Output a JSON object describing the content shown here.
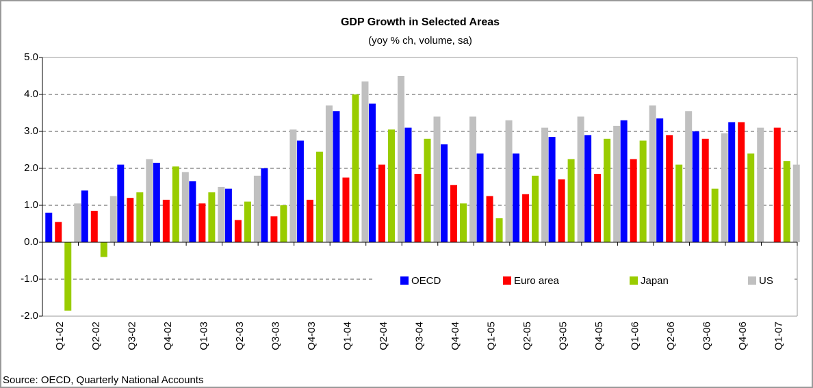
{
  "chart_data": {
    "type": "bar",
    "title": "GDP Growth in Selected Areas",
    "subtitle": "(yoy % ch, volume, sa)",
    "source": "Source: OECD, Quarterly National Accounts",
    "categories": [
      "Q1-02",
      "Q2-02",
      "Q3-02",
      "Q4-02",
      "Q1-03",
      "Q2-03",
      "Q3-03",
      "Q4-03",
      "Q1-04",
      "Q2-04",
      "Q3-04",
      "Q4-04",
      "Q1-05",
      "Q2-05",
      "Q3-05",
      "Q4-05",
      "Q1-06",
      "Q2-06",
      "Q3-06",
      "Q4-06",
      "Q1-07"
    ],
    "series": [
      {
        "name": "OECD",
        "color": "#0000ff",
        "values": [
          0.8,
          1.4,
          2.1,
          2.15,
          1.65,
          1.45,
          2.0,
          2.75,
          3.55,
          3.75,
          3.1,
          2.65,
          2.4,
          2.4,
          2.85,
          2.9,
          3.3,
          3.35,
          3.0,
          3.25,
          null
        ]
      },
      {
        "name": "Euro area",
        "color": "#ff0000",
        "values": [
          0.55,
          0.85,
          1.2,
          1.15,
          1.05,
          0.6,
          0.7,
          1.15,
          1.75,
          2.1,
          1.85,
          1.55,
          1.25,
          1.3,
          1.7,
          1.85,
          2.25,
          2.9,
          2.8,
          3.25,
          3.1
        ]
      },
      {
        "name": "Japan",
        "color": "#99cc00",
        "values": [
          -1.85,
          -0.4,
          1.35,
          2.05,
          1.35,
          1.1,
          1.0,
          2.45,
          4.0,
          3.05,
          2.8,
          1.05,
          0.65,
          1.8,
          2.25,
          2.8,
          2.75,
          2.1,
          1.45,
          2.4,
          2.2
        ]
      },
      {
        "name": "US",
        "color": "#c0c0c0",
        "values": [
          1.05,
          1.25,
          2.25,
          1.9,
          1.5,
          1.8,
          3.05,
          3.7,
          4.35,
          4.5,
          3.4,
          3.4,
          3.3,
          3.1,
          3.4,
          3.15,
          3.7,
          3.55,
          2.95,
          3.1,
          2.1
        ]
      }
    ],
    "ylim": [
      -2,
      5
    ],
    "yticks": [
      {
        "value": -2,
        "label": "-2.0"
      },
      {
        "value": -1,
        "label": "-1.0"
      },
      {
        "value": 0,
        "label": "0.0"
      },
      {
        "value": 1,
        "label": "1.0"
      },
      {
        "value": 2,
        "label": "2.0"
      },
      {
        "value": 3,
        "label": "3.0"
      },
      {
        "value": 4,
        "label": "4.0"
      },
      {
        "value": 5,
        "label": "5.0"
      }
    ],
    "grid": true,
    "legend": "lower right"
  }
}
